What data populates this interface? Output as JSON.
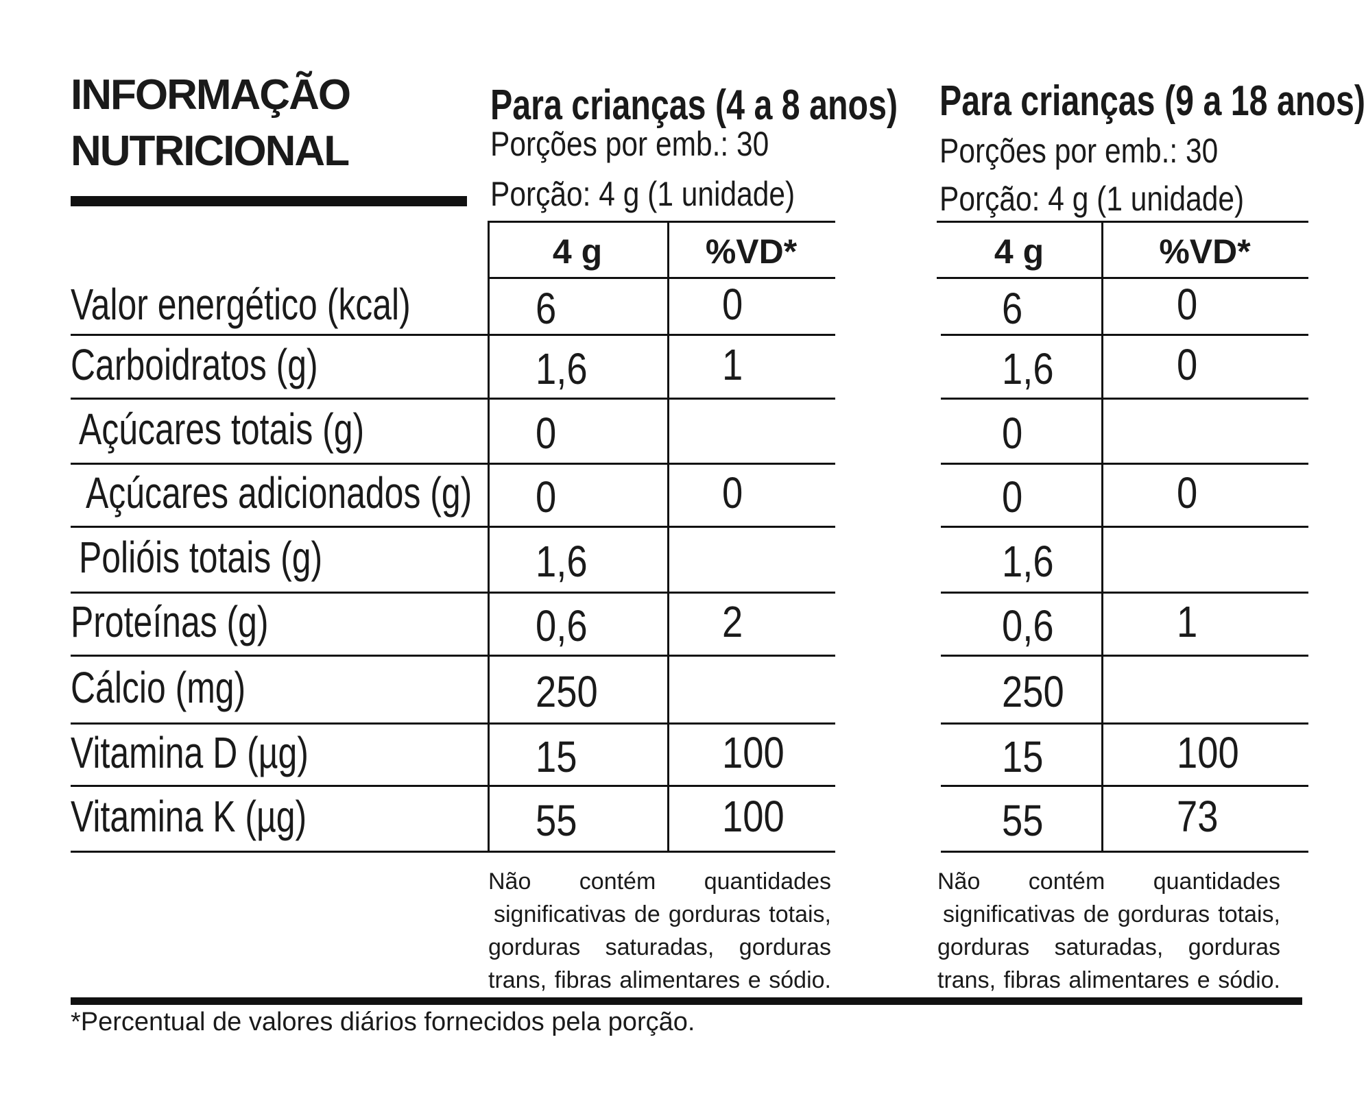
{
  "title": {
    "line1": "INFORMAÇÃO",
    "line2": "NUTRICIONAL"
  },
  "rows": [
    "Valor energético (kcal)",
    "Carboidratos (g)",
    "Açúcares totais (g)",
    "Açúcares adicionados (g)",
    "Polióis totais (g)",
    "Proteínas (g)",
    "Cálcio (mg)",
    "Vitamina D (µg)",
    "Vitamina K (µg)"
  ],
  "tables": [
    {
      "heading": "Para crianças (4 a 8 anos)",
      "servings": "Porções por emb.: 30",
      "portion": "Porção: 4 g (1 unidade)",
      "col_amount": "4 g",
      "col_vd": "%VD*",
      "amounts": [
        "6",
        "1,6",
        "0",
        "0",
        "1,6",
        "0,6",
        "250",
        "15",
        "55"
      ],
      "vd": [
        "0",
        "1",
        "",
        "0",
        "",
        "2",
        "",
        "100",
        "100"
      ],
      "note": [
        "Não contém quantidades",
        "significativas de gorduras totais,",
        "gorduras saturadas, gorduras",
        "trans, fibras alimentares e sódio."
      ]
    },
    {
      "heading": "Para crianças (9 a 18 anos)",
      "servings": "Porções por emb.: 30",
      "portion": "Porção: 4 g (1 unidade)",
      "col_amount": "4 g",
      "col_vd": "%VD*",
      "amounts": [
        "6",
        "1,6",
        "0",
        "0",
        "1,6",
        "0,6",
        "250",
        "15",
        "55"
      ],
      "vd": [
        "0",
        "0",
        "",
        "0",
        "",
        "1",
        "",
        "100",
        "73"
      ],
      "note": [
        "Não contém quantidades",
        "significativas de gorduras totais,",
        "gorduras saturadas, gorduras",
        "trans, fibras alimentares e sódio."
      ]
    }
  ],
  "footnote": "*Percentual de valores diários fornecidos pela porção."
}
